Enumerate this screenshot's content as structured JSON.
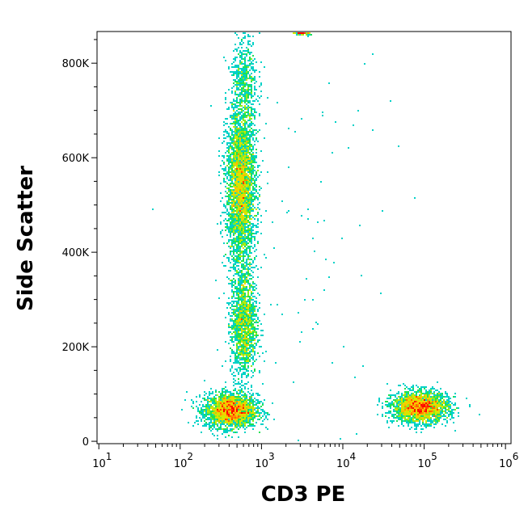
{
  "chart_data": {
    "type": "scatter",
    "subtype": "density-dot-plot",
    "xlabel": "CD3 PE",
    "ylabel": "Side Scatter",
    "x_scale": "log",
    "xlim": [
      9.5,
      1170000
    ],
    "ylim": [
      -5000,
      867000
    ],
    "x_ticks": [
      {
        "value": 10,
        "base": "10",
        "exp": "1"
      },
      {
        "value": 100,
        "base": "10",
        "exp": "2"
      },
      {
        "value": 1000,
        "base": "10",
        "exp": "3"
      },
      {
        "value": 10000,
        "base": "10",
        "exp": "4"
      },
      {
        "value": 100000,
        "base": "10",
        "exp": "5"
      },
      {
        "value": 1000000,
        "base": "10",
        "exp": "6"
      }
    ],
    "y_ticks": [
      {
        "value": 0,
        "label": "0"
      },
      {
        "value": 200000,
        "label": "200K"
      },
      {
        "value": 400000,
        "label": "400K"
      },
      {
        "value": 600000,
        "label": "600K"
      },
      {
        "value": 800000,
        "label": "800K"
      }
    ],
    "grid": false,
    "colormap": [
      "#0000ff",
      "#00c8ff",
      "#00e060",
      "#c8f000",
      "#ffc800",
      "#ff0000"
    ],
    "populations": [
      {
        "x_center": 420,
        "x_log_sd": 0.16,
        "y_center": 65000,
        "y_sd": 18000,
        "events": 2600
      },
      {
        "x_center": 560,
        "x_log_sd": 0.09,
        "y_center": 540000,
        "y_sd": 85000,
        "events": 3600
      },
      {
        "x_center": 610,
        "x_log_sd": 0.08,
        "y_center": 250000,
        "y_sd": 60000,
        "events": 1600
      },
      {
        "x_center": 620,
        "x_log_sd": 0.08,
        "y_center": 760000,
        "y_sd": 50000,
        "events": 500
      },
      {
        "x_center": 90000,
        "x_log_sd": 0.17,
        "y_center": 72000,
        "y_sd": 16000,
        "events": 2600
      },
      {
        "x_center": 3200,
        "x_log_sd": 0.05,
        "y_center": 864000,
        "y_sd": 2000,
        "events": 150
      },
      {
        "x_center": 3000,
        "x_log_sd": 0.6,
        "y_center": 400000,
        "y_sd": 250000,
        "events": 90
      }
    ]
  }
}
